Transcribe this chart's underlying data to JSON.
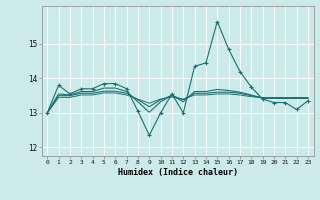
{
  "xlabel": "Humidex (Indice chaleur)",
  "ylabel": "",
  "bg_color": "#cdeaea",
  "grid_color": "#ffffff",
  "line_color": "#1a7070",
  "xlim": [
    -0.5,
    23.5
  ],
  "ylim": [
    11.75,
    16.1
  ],
  "yticks": [
    12,
    13,
    14,
    15
  ],
  "xticks": [
    0,
    1,
    2,
    3,
    4,
    5,
    6,
    7,
    8,
    9,
    10,
    11,
    12,
    13,
    14,
    15,
    16,
    17,
    18,
    19,
    20,
    21,
    22,
    23
  ],
  "series": [
    [
      13.0,
      13.8,
      13.55,
      13.7,
      13.7,
      13.85,
      13.85,
      13.7,
      13.05,
      12.35,
      13.0,
      13.55,
      13.0,
      14.35,
      14.45,
      15.65,
      14.85,
      14.2,
      13.75,
      13.4,
      13.3,
      13.3,
      13.1,
      13.35
    ],
    [
      13.0,
      13.55,
      13.52,
      13.62,
      13.62,
      13.72,
      13.72,
      13.62,
      13.32,
      13.02,
      13.32,
      13.52,
      13.32,
      13.62,
      13.62,
      13.68,
      13.65,
      13.6,
      13.52,
      13.42,
      13.42,
      13.42,
      13.42,
      13.42
    ],
    [
      13.0,
      13.5,
      13.5,
      13.57,
      13.57,
      13.63,
      13.63,
      13.57,
      13.38,
      13.18,
      13.38,
      13.5,
      13.38,
      13.57,
      13.57,
      13.6,
      13.6,
      13.57,
      13.5,
      13.44,
      13.44,
      13.44,
      13.44,
      13.44
    ],
    [
      13.0,
      13.45,
      13.45,
      13.52,
      13.52,
      13.58,
      13.58,
      13.52,
      13.4,
      13.28,
      13.4,
      13.46,
      13.4,
      13.52,
      13.52,
      13.55,
      13.55,
      13.52,
      13.47,
      13.44,
      13.44,
      13.44,
      13.44,
      13.44
    ]
  ]
}
